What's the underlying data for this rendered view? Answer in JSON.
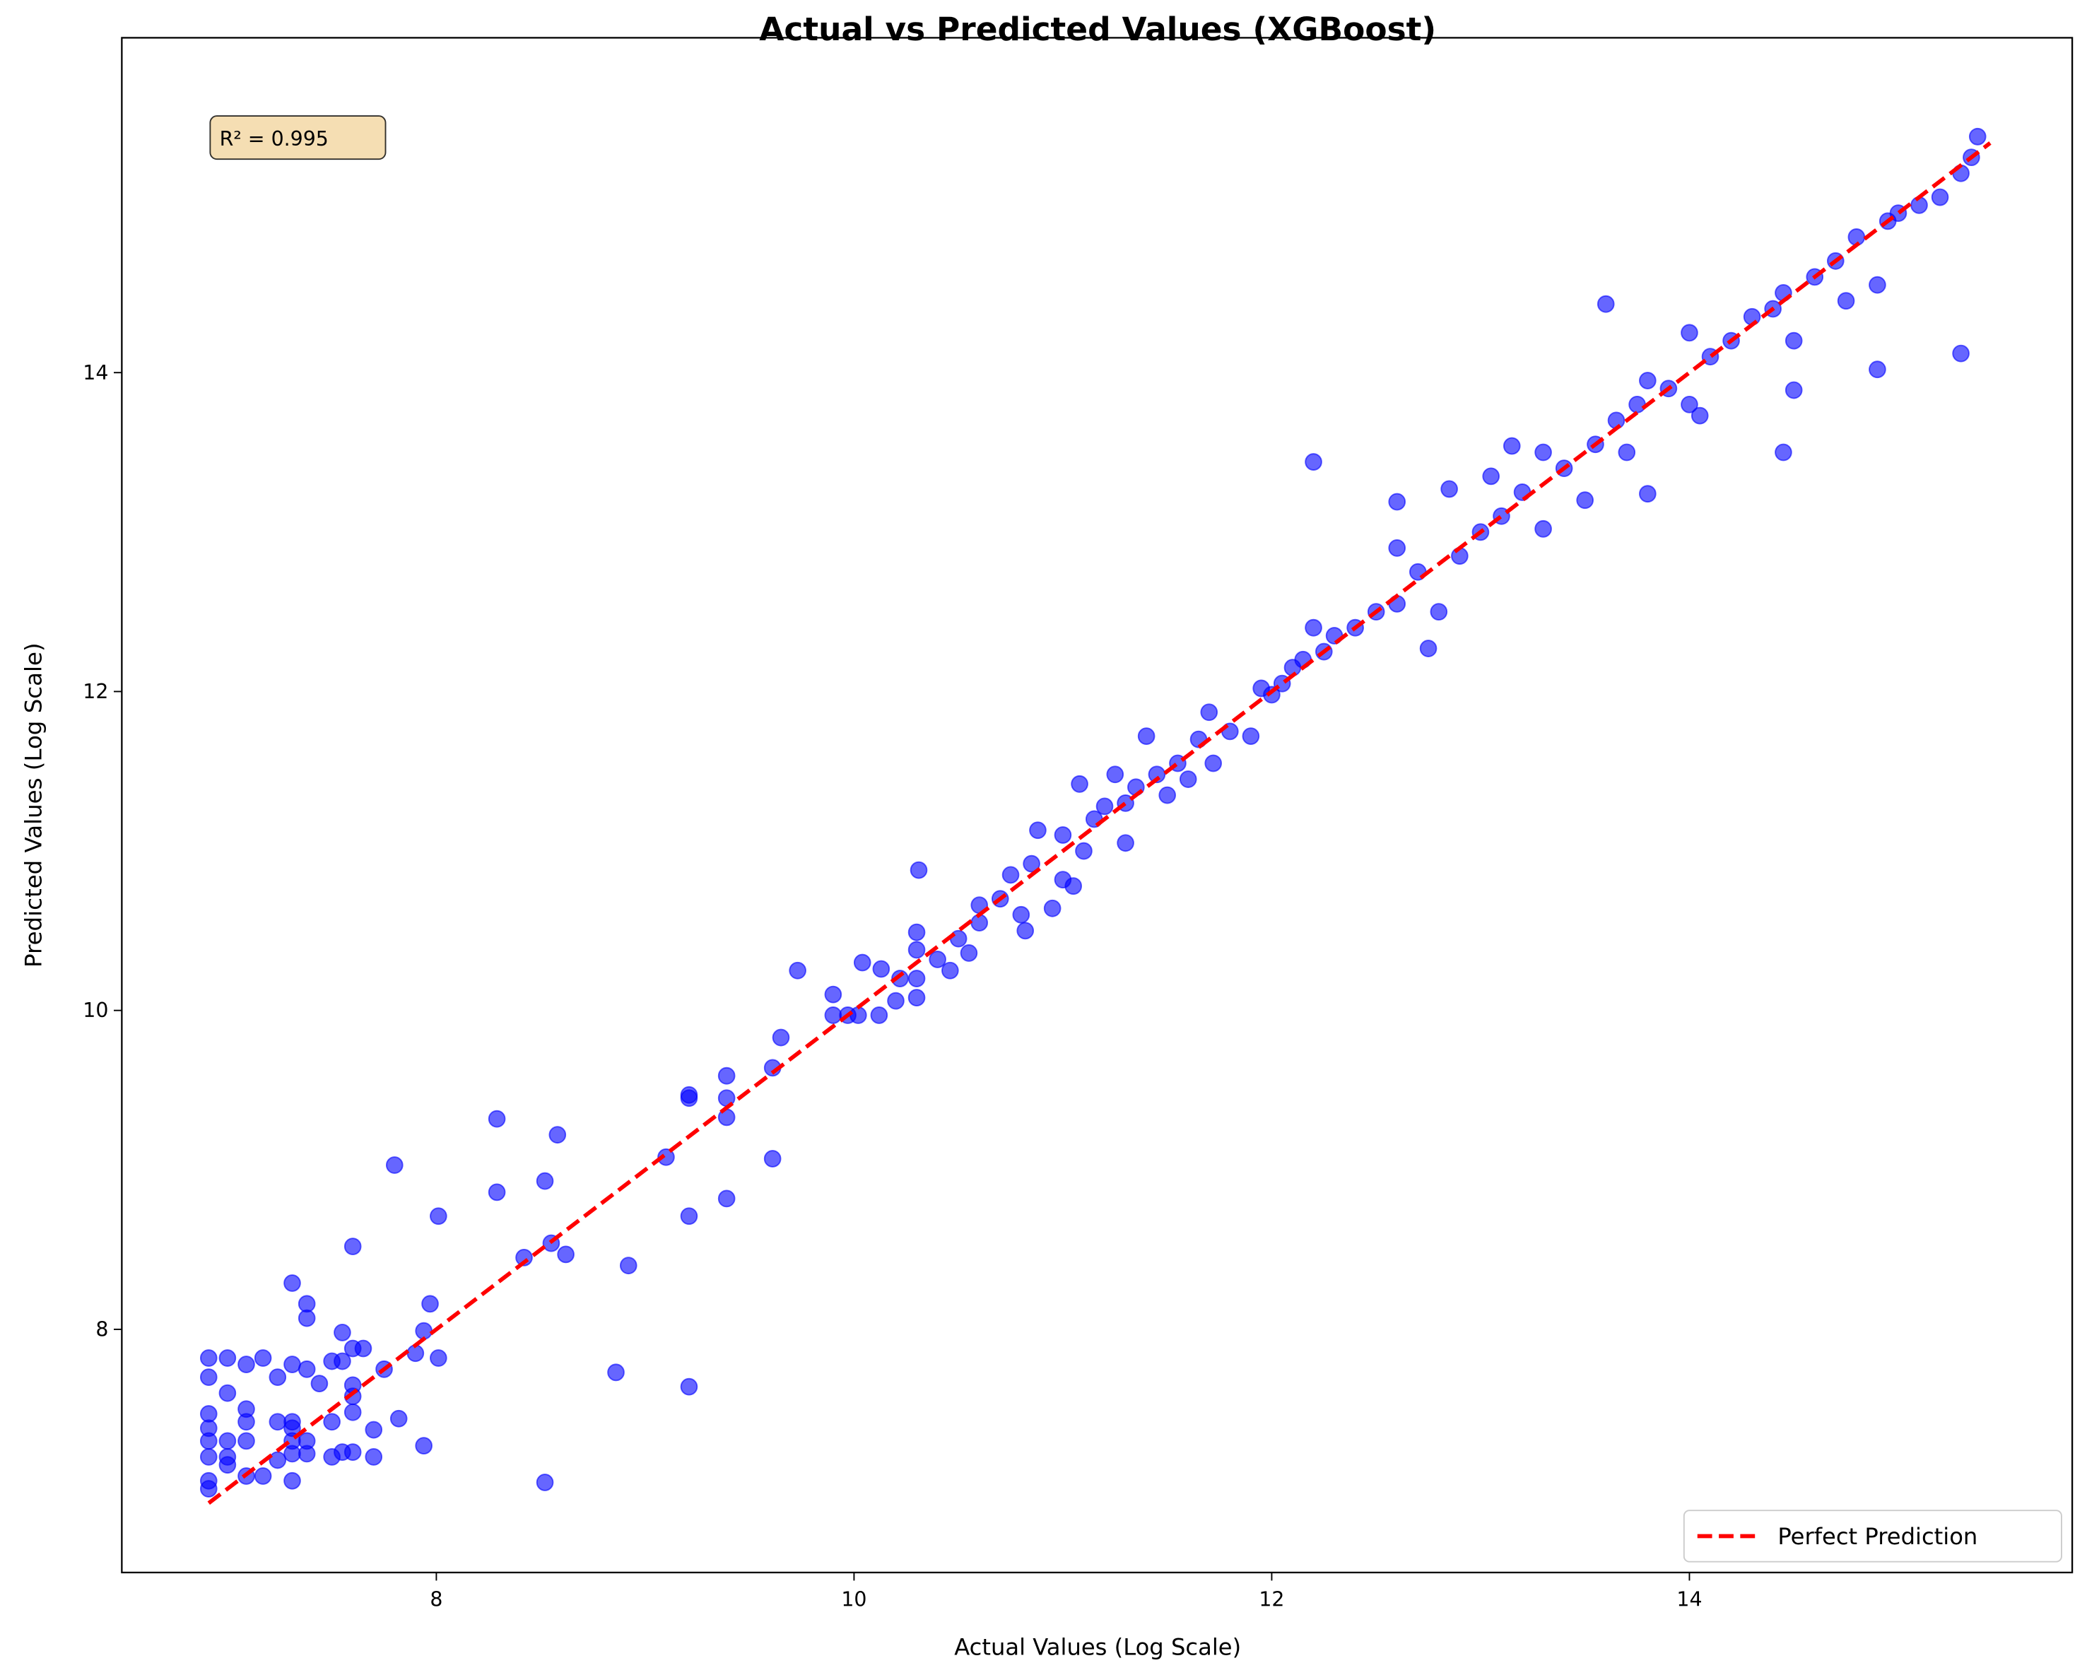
{
  "chart_data": {
    "type": "scatter",
    "title": "Actual vs Predicted Values (XGBoost)",
    "x_label": "Actual Values (Log Scale)",
    "y_label": "Predicted Values (Log Scale)",
    "annotation": "R² = 0.995",
    "legend": "lower right",
    "xlim": [
      6.494,
      15.833
    ],
    "ylim": [
      6.475,
      16.1
    ],
    "xticks": [
      8,
      10,
      12,
      14
    ],
    "yticks": [
      8,
      10,
      12,
      14
    ],
    "series": [
      {
        "color": "#0000ff",
        "alpha": 0.6,
        "marker": "o",
        "x": [
          6.91,
          6.91,
          6.91,
          6.91,
          6.91,
          6.91,
          6.91,
          6.91,
          7.0,
          7.0,
          7.0,
          7.0,
          7.0,
          7.09,
          7.09,
          7.09,
          7.09,
          7.09,
          7.17,
          7.17,
          7.24,
          7.24,
          7.24,
          7.31,
          7.31,
          7.31,
          7.31,
          7.31,
          7.31,
          7.31,
          7.38,
          7.38,
          7.38,
          7.38,
          7.38,
          7.44,
          7.5,
          7.5,
          7.5,
          7.55,
          7.55,
          7.55,
          7.6,
          7.6,
          7.6,
          7.6,
          7.6,
          7.6,
          7.65,
          7.7,
          7.7,
          7.75,
          7.8,
          7.82,
          7.9,
          7.94,
          7.94,
          7.97,
          8.01,
          8.01,
          8.29,
          8.29,
          8.42,
          8.52,
          8.55,
          8.52,
          8.58,
          8.62,
          8.86,
          8.92,
          9.1,
          9.21,
          9.21,
          9.21,
          9.21,
          9.39,
          9.39,
          9.39,
          9.39,
          9.61,
          9.61,
          9.65,
          9.73,
          9.9,
          9.9,
          9.97,
          10.02,
          10.04,
          10.13,
          10.12,
          10.2,
          10.22,
          10.3,
          10.3,
          10.3,
          10.3,
          10.31,
          10.4,
          10.46,
          10.5,
          10.55,
          10.6,
          10.6,
          10.7,
          10.75,
          10.8,
          10.82,
          10.85,
          10.88,
          10.95,
          11.0,
          11.0,
          11.05,
          11.08,
          11.1,
          11.15,
          11.2,
          11.25,
          11.3,
          11.3,
          11.35,
          11.4,
          11.45,
          11.5,
          11.55,
          11.6,
          11.65,
          11.7,
          11.72,
          11.8,
          11.9,
          11.95,
          12.0,
          12.05,
          12.1,
          12.15,
          12.2,
          12.2,
          12.25,
          12.3,
          12.4,
          12.5,
          12.6,
          12.6,
          12.6,
          12.7,
          12.75,
          12.8,
          12.85,
          12.9,
          13.0,
          13.05,
          13.1,
          13.15,
          13.2,
          13.3,
          13.3,
          13.4,
          13.5,
          13.55,
          13.6,
          13.65,
          13.7,
          13.75,
          13.8,
          13.8,
          13.9,
          14.0,
          14.0,
          14.05,
          14.1,
          14.2,
          14.3,
          14.4,
          14.45,
          14.45,
          14.5,
          14.5,
          14.6,
          14.7,
          14.75,
          14.8,
          14.9,
          14.9,
          14.95,
          15.0,
          15.1,
          15.2,
          15.3,
          15.3,
          15.35,
          15.38
        ],
        "values": [
          7.82,
          7.7,
          7.47,
          7.38,
          7.3,
          7.2,
          7.05,
          7.0,
          7.82,
          7.6,
          7.3,
          7.2,
          7.15,
          7.78,
          7.5,
          7.42,
          7.3,
          7.08,
          7.82,
          7.08,
          7.7,
          7.42,
          7.18,
          8.29,
          7.78,
          7.42,
          7.38,
          7.3,
          7.22,
          7.05,
          8.16,
          8.07,
          7.75,
          7.3,
          7.22,
          7.66,
          7.8,
          7.42,
          7.2,
          7.98,
          7.8,
          7.23,
          8.52,
          7.88,
          7.65,
          7.58,
          7.48,
          7.23,
          7.88,
          7.37,
          7.2,
          7.75,
          9.03,
          7.44,
          7.85,
          7.99,
          7.27,
          8.16,
          8.71,
          7.82,
          9.32,
          8.86,
          8.45,
          8.93,
          8.54,
          7.04,
          9.22,
          8.47,
          7.73,
          8.4,
          9.08,
          9.47,
          9.45,
          8.71,
          7.64,
          9.59,
          9.45,
          9.33,
          8.82,
          9.64,
          9.07,
          9.83,
          10.25,
          10.1,
          9.97,
          9.97,
          9.97,
          10.3,
          10.26,
          9.97,
          10.06,
          10.2,
          10.49,
          10.38,
          10.2,
          10.08,
          10.88,
          10.32,
          10.25,
          10.45,
          10.36,
          10.55,
          10.66,
          10.7,
          10.85,
          10.6,
          10.5,
          10.92,
          11.13,
          10.64,
          11.1,
          10.82,
          10.78,
          11.42,
          11.0,
          11.2,
          11.28,
          11.48,
          11.3,
          11.05,
          11.4,
          11.72,
          11.48,
          11.35,
          11.55,
          11.45,
          11.7,
          11.87,
          11.55,
          11.75,
          11.72,
          12.02,
          11.98,
          12.05,
          12.15,
          12.2,
          13.44,
          12.4,
          12.25,
          12.35,
          12.4,
          12.5,
          12.55,
          13.19,
          12.9,
          12.75,
          12.27,
          12.5,
          13.27,
          12.85,
          13.0,
          13.35,
          13.1,
          13.54,
          13.25,
          13.02,
          13.5,
          13.4,
          13.2,
          13.55,
          14.43,
          13.7,
          13.5,
          13.8,
          13.24,
          13.95,
          13.9,
          14.25,
          13.8,
          13.73,
          14.1,
          14.2,
          14.35,
          14.4,
          14.5,
          13.5,
          14.2,
          13.89,
          14.6,
          14.7,
          14.45,
          14.85,
          14.55,
          14.02,
          14.95,
          15.0,
          15.05,
          15.1,
          15.25,
          14.12,
          15.35,
          15.48
        ]
      },
      {
        "name": "Perfect Prediction",
        "color": "#ff0000",
        "line_style": "dashed",
        "x": [
          6.91,
          15.44
        ],
        "values": [
          6.91,
          15.44
        ]
      }
    ]
  }
}
